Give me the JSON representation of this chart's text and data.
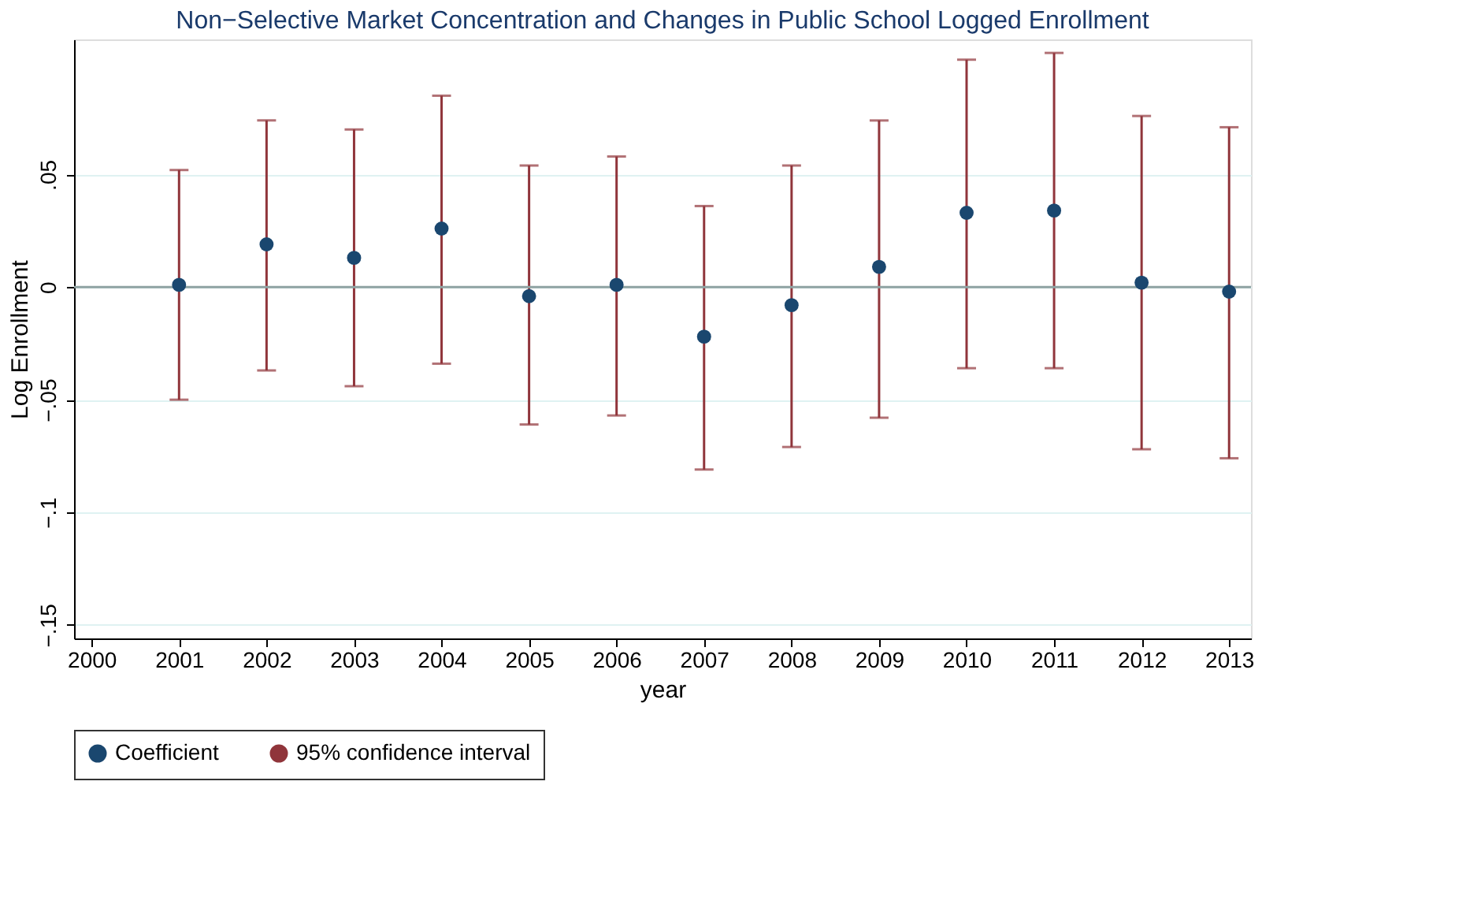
{
  "chart_data": {
    "type": "scatter",
    "title": "Non−Selective Market Concentration and Changes in Public School Logged Enrollment",
    "xlabel": "year",
    "ylabel": "Log Enrollment",
    "x": [
      2001,
      2002,
      2003,
      2004,
      2005,
      2006,
      2007,
      2008,
      2009,
      2010,
      2011,
      2012,
      2013
    ],
    "series": [
      {
        "name": "Coefficient",
        "color": "#1a476f",
        "values": [
          0.001,
          0.019,
          0.013,
          0.026,
          -0.004,
          0.001,
          -0.022,
          -0.008,
          0.009,
          0.033,
          0.034,
          0.002,
          -0.002
        ],
        "errors": [
          [
            -0.05,
            0.052
          ],
          [
            -0.037,
            0.074
          ],
          [
            -0.044,
            0.07
          ],
          [
            -0.034,
            0.085
          ],
          [
            -0.061,
            0.054
          ],
          [
            -0.057,
            0.058
          ],
          [
            -0.081,
            0.036
          ],
          [
            -0.071,
            0.054
          ],
          [
            -0.058,
            0.074
          ],
          [
            -0.036,
            0.101
          ],
          [
            -0.036,
            0.104
          ],
          [
            -0.072,
            0.076
          ],
          [
            -0.076,
            0.071
          ]
        ]
      },
      {
        "name": "95% confidence interval",
        "color": "#90353b",
        "type": "other",
        "values": [
          null,
          null,
          null,
          null,
          null,
          null,
          null,
          null,
          null,
          null,
          null,
          null,
          null
        ]
      }
    ],
    "xlim": [
      1999.8,
      2013.25
    ],
    "xticks": [
      2000,
      2001,
      2002,
      2003,
      2004,
      2005,
      2006,
      2007,
      2008,
      2009,
      2010,
      2011,
      2012,
      2013
    ],
    "ylim": [
      -0.156,
      0.11
    ],
    "yticks": [
      {
        "value": -0.15,
        "label": "−.15"
      },
      {
        "value": -0.1,
        "label": "−.1"
      },
      {
        "value": -0.05,
        "label": "−.05"
      },
      {
        "value": 0,
        "label": "0"
      },
      {
        "value": 0.05,
        "label": ".05"
      }
    ],
    "ref_lines": [
      {
        "axis": "y",
        "value": 0,
        "color": "#8fa3a3"
      }
    ],
    "grid": "y",
    "legend": "bottom",
    "marker": "circle"
  }
}
